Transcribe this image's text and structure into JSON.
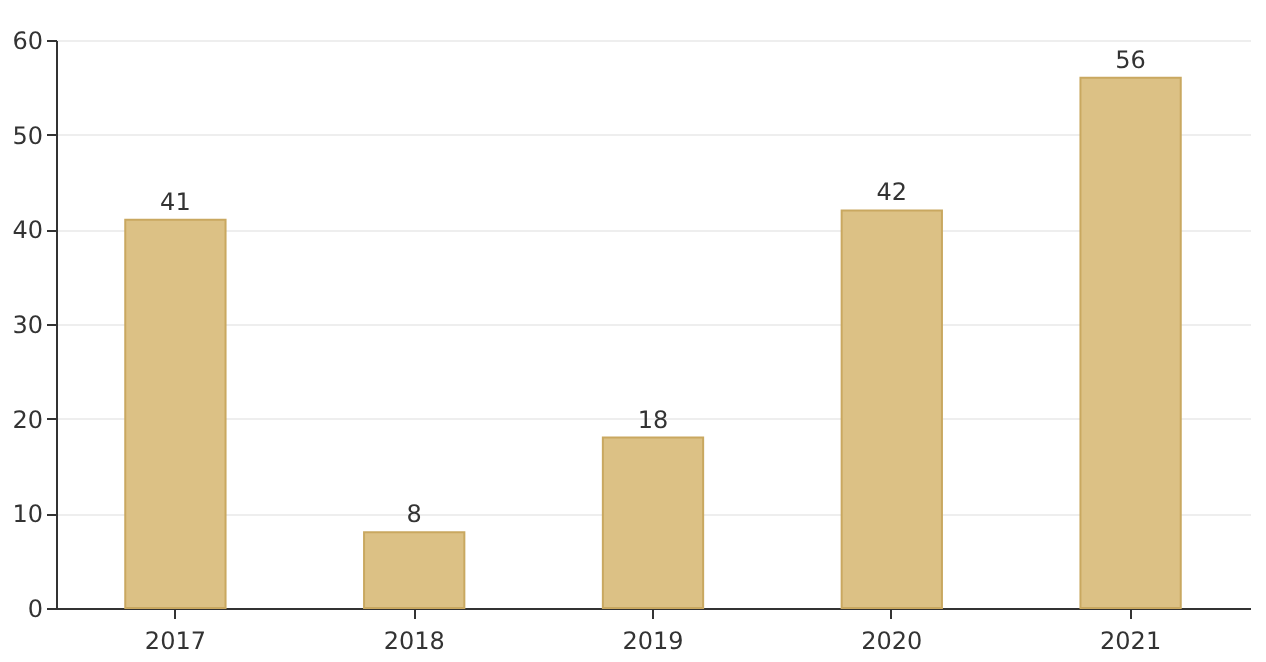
{
  "chart_data": {
    "type": "bar",
    "categories": [
      "2017",
      "2018",
      "2019",
      "2020",
      "2021"
    ],
    "values": [
      41,
      8,
      18,
      42,
      56
    ],
    "color": "#dcc185",
    "ylim": [
      0,
      60
    ],
    "yticks": [
      0,
      10,
      20,
      30,
      40,
      50,
      60
    ],
    "grid": "y",
    "data_labels": true
  }
}
